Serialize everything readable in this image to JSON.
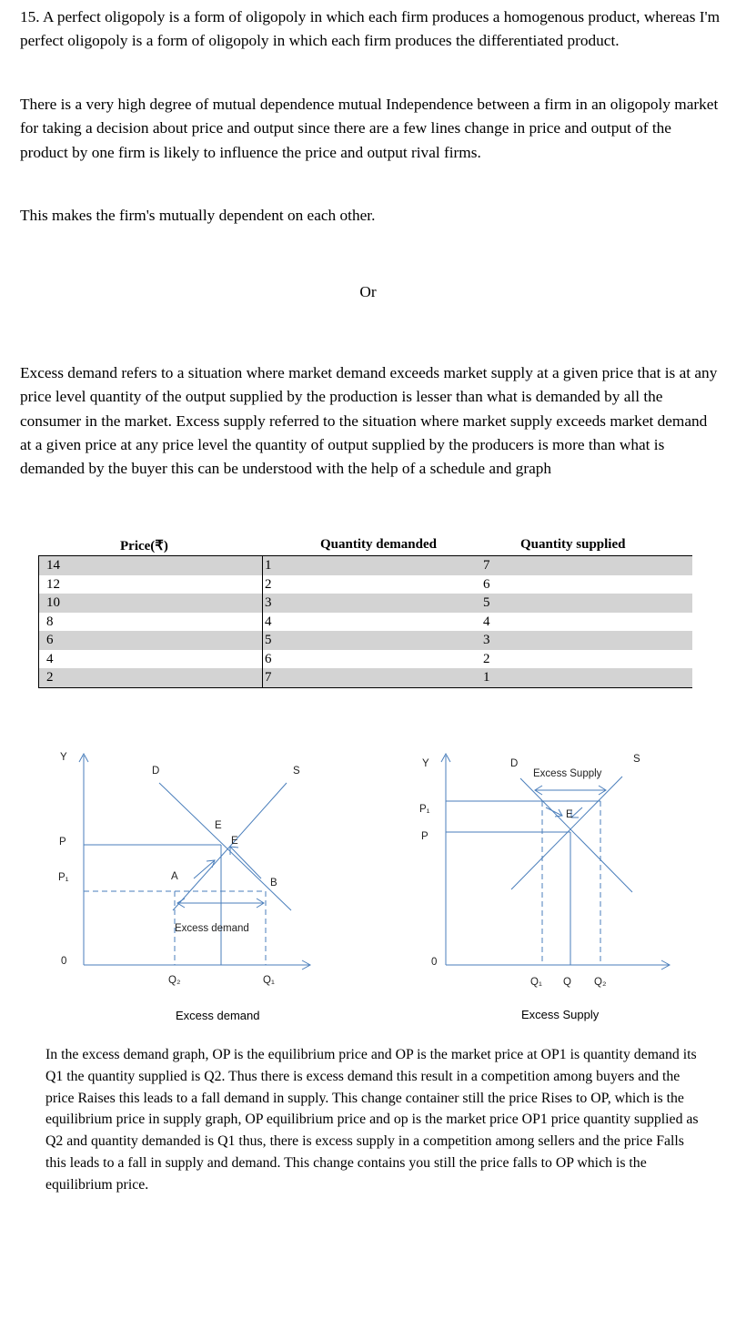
{
  "paragraphs": {
    "p1": "15. A perfect oligopoly is a form of oligopoly in which each firm produces a homogenous product, whereas I'm perfect oligopoly is a form of oligopoly in which each firm produces the differentiated product.",
    "p2": "There is a very high degree of mutual dependence mutual Independence between a firm in an oligopoly market for taking a decision about price and output since there are a few lines change in price and output of the product by one firm is likely to influence the price and output rival firms.",
    "p3": "This makes the firm's mutually dependent on each other.",
    "or": "Or",
    "p4": "Excess demand refers to a situation where market demand exceeds market supply at a given price that is at any price level quantity of the output supplied by the production is lesser than what is demanded by all the consumer in the market. Excess supply referred to the situation where market supply exceeds market demand at a given price at any price level the quantity of output supplied by the producers is more than what is demanded by the buyer this can be understood with the help of a schedule and graph",
    "p5": "In the excess demand graph, OP is the equilibrium price and OP is the market price at OP1 is quantity demand its Q1 the quantity supplied is Q2. Thus there is excess demand this result in a competition among buyers and the price Raises this leads to a fall demand in supply. This change container still the price Rises to OP, which is the equilibrium price in supply graph, OP equilibrium price and op is the market price OP1 price quantity supplied as Q2 and quantity demanded is Q1 thus, there is excess supply in a competition among sellers and the price Falls this leads to a fall in supply and demand. This change contains you still the price falls to OP which is the equilibrium price."
  },
  "schedule": {
    "headers": [
      "Price(₹)",
      "Quantity demanded",
      "Quantity supplied"
    ],
    "rows": [
      {
        "price": "14",
        "qd": "1",
        "qs": "7"
      },
      {
        "price": "12",
        "qd": "2",
        "qs": "6"
      },
      {
        "price": "10",
        "qd": "3",
        "qs": "5"
      },
      {
        "price": "8",
        "qd": "4",
        "qs": "4"
      },
      {
        "price": "6",
        "qd": "5",
        "qs": "3"
      },
      {
        "price": "4",
        "qd": "6",
        "qs": "2"
      },
      {
        "price": "2",
        "qd": "7",
        "qs": "1"
      }
    ]
  },
  "graph_left": {
    "labels": {
      "y": "Y",
      "p": "P",
      "p1": "P₁",
      "o": "0",
      "d": "D",
      "s": "S",
      "e1": "E",
      "e2": "E",
      "a": "A",
      "b": "B",
      "q2": "Q₂",
      "q1": "Q₁",
      "excess": "Excess demand"
    },
    "caption": "Excess demand"
  },
  "graph_right": {
    "labels": {
      "y": "Y",
      "p1": "P₁",
      "p": "P",
      "o": "0",
      "d": "D",
      "s": "S",
      "e": "E",
      "excess": "Excess Supply",
      "q1": "Q₁",
      "q": "Q",
      "q2": "Q₂"
    },
    "caption": "Excess Supply"
  },
  "colors": {
    "line": "#4a7ebb",
    "shade": "#d3d3d3"
  }
}
